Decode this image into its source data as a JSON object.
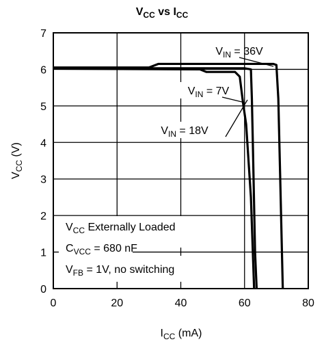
{
  "chart_data": {
    "type": "line",
    "title": [
      {
        "text": "V"
      },
      {
        "text": "CC",
        "sub": true
      },
      {
        "text": " vs I"
      },
      {
        "text": "CC",
        "sub": true
      }
    ],
    "x_label": [
      {
        "text": "I"
      },
      {
        "text": "CC",
        "sub": true
      },
      {
        "text": " (mA)"
      }
    ],
    "y_label": [
      {
        "text": "V"
      },
      {
        "text": "CC",
        "sub": true
      },
      {
        "text": " (V)"
      }
    ],
    "xlim": [
      0,
      80
    ],
    "ylim": [
      0,
      7
    ],
    "xticks": [
      0,
      20,
      40,
      60,
      80
    ],
    "yticks": [
      0,
      1,
      2,
      3,
      4,
      5,
      6,
      7
    ],
    "grid": true,
    "series": [
      {
        "name": [
          {
            "text": "V"
          },
          {
            "text": "IN",
            "sub": true
          },
          {
            "text": " = 36V"
          }
        ],
        "color": "#000000",
        "x": [
          0,
          30,
          33,
          69,
          70,
          70.6,
          71.2,
          72
        ],
        "values": [
          6.05,
          6.05,
          6.15,
          6.15,
          6.12,
          5.2,
          3,
          0
        ]
      },
      {
        "name": [
          {
            "text": "V"
          },
          {
            "text": "IN",
            "sub": true
          },
          {
            "text": " = 7V"
          }
        ],
        "color": "#000000",
        "x": [
          0,
          46,
          48,
          57,
          58.5,
          59.5,
          60.5,
          62,
          63
        ],
        "values": [
          6.02,
          6.0,
          5.93,
          5.93,
          5.8,
          5.1,
          4.5,
          2.5,
          0
        ]
      },
      {
        "name": [
          {
            "text": "V"
          },
          {
            "text": "IN",
            "sub": true
          },
          {
            "text": " = 18V"
          }
        ],
        "color": "#000000",
        "x": [
          0,
          60,
          62,
          62.3,
          62.6,
          63.3,
          63.8
        ],
        "values": [
          6.03,
          6.03,
          6.0,
          5.2,
          4,
          1,
          0
        ]
      }
    ],
    "annotations": [
      [
        {
          "text": "V"
        },
        {
          "text": "CC",
          "sub": true
        },
        {
          "text": " Externally Loaded"
        }
      ],
      [
        {
          "text": "C"
        },
        {
          "text": "VCC",
          "sub": true
        },
        {
          "text": " = 680 nF"
        }
      ],
      [
        {
          "text": "V"
        },
        {
          "text": "FB",
          "sub": true
        },
        {
          "text": " = 1V, no switching"
        }
      ]
    ]
  }
}
